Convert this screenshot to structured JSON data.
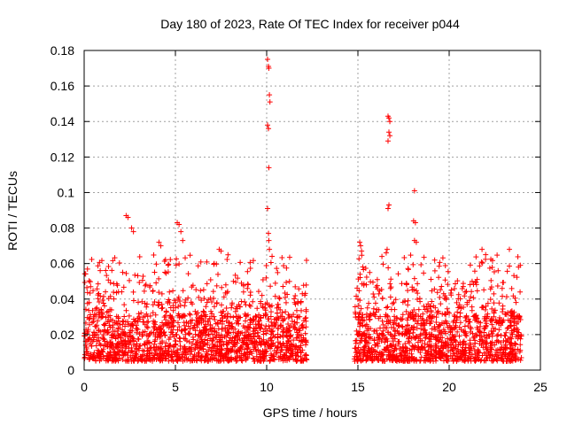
{
  "chart_data": {
    "type": "scatter",
    "title": "Day 180 of 2023, Rate Of TEC Index for receiver p044",
    "xlabel": "GPS time / hours",
    "ylabel": "ROTI / TECUs",
    "xlim": [
      0,
      25
    ],
    "ylim": [
      0,
      0.18
    ],
    "x_ticks": [
      0,
      5,
      10,
      15,
      20,
      25
    ],
    "y_ticks": [
      0,
      0.02,
      0.04,
      0.06,
      0.08,
      0.1,
      0.12,
      0.14,
      0.16,
      0.18
    ],
    "x_tick_labels": [
      "0",
      "5",
      "10",
      "15",
      "20",
      "25"
    ],
    "y_tick_labels": [
      "0",
      "0.02",
      "0.04",
      "0.06",
      "0.08",
      "0.1",
      "0.12",
      "0.14",
      "0.16",
      "0.18"
    ],
    "grid": true,
    "marker": "+",
    "color": "#ff0000",
    "data_segments": [
      {
        "x_start": 0.0,
        "x_end": 12.2,
        "typical_y_range": [
          0.005,
          0.03
        ],
        "max_bursts": [
          0.086,
          0.08
        ]
      },
      {
        "x_start": 14.8,
        "x_end": 24.0,
        "typical_y_range": [
          0.005,
          0.03
        ],
        "max_bursts": [
          0.07,
          0.068
        ]
      }
    ],
    "notable_points": [
      {
        "x": 2.3,
        "y": 0.087
      },
      {
        "x": 2.4,
        "y": 0.086
      },
      {
        "x": 2.6,
        "y": 0.08
      },
      {
        "x": 2.7,
        "y": 0.078
      },
      {
        "x": 4.1,
        "y": 0.072
      },
      {
        "x": 4.2,
        "y": 0.07
      },
      {
        "x": 5.1,
        "y": 0.083
      },
      {
        "x": 5.2,
        "y": 0.082
      },
      {
        "x": 5.3,
        "y": 0.078
      },
      {
        "x": 5.4,
        "y": 0.073
      },
      {
        "x": 7.4,
        "y": 0.068
      },
      {
        "x": 7.5,
        "y": 0.067
      },
      {
        "x": 10.05,
        "y": 0.175
      },
      {
        "x": 10.1,
        "y": 0.171
      },
      {
        "x": 10.12,
        "y": 0.17
      },
      {
        "x": 10.15,
        "y": 0.155
      },
      {
        "x": 10.18,
        "y": 0.151
      },
      {
        "x": 10.05,
        "y": 0.138
      },
      {
        "x": 10.1,
        "y": 0.136
      },
      {
        "x": 10.12,
        "y": 0.114
      },
      {
        "x": 10.05,
        "y": 0.091
      },
      {
        "x": 10.1,
        "y": 0.077
      },
      {
        "x": 10.12,
        "y": 0.073
      },
      {
        "x": 10.15,
        "y": 0.068
      },
      {
        "x": 15.1,
        "y": 0.072
      },
      {
        "x": 15.15,
        "y": 0.07
      },
      {
        "x": 15.2,
        "y": 0.067
      },
      {
        "x": 16.65,
        "y": 0.143
      },
      {
        "x": 16.7,
        "y": 0.142
      },
      {
        "x": 16.75,
        "y": 0.14
      },
      {
        "x": 16.7,
        "y": 0.134
      },
      {
        "x": 16.75,
        "y": 0.132
      },
      {
        "x": 16.65,
        "y": 0.129
      },
      {
        "x": 16.7,
        "y": 0.093
      },
      {
        "x": 16.65,
        "y": 0.091
      },
      {
        "x": 16.6,
        "y": 0.068
      },
      {
        "x": 16.55,
        "y": 0.066
      },
      {
        "x": 18.1,
        "y": 0.101
      },
      {
        "x": 18.05,
        "y": 0.084
      },
      {
        "x": 18.15,
        "y": 0.083
      },
      {
        "x": 18.1,
        "y": 0.073
      },
      {
        "x": 18.2,
        "y": 0.072
      },
      {
        "x": 21.8,
        "y": 0.068
      },
      {
        "x": 22.0,
        "y": 0.065
      },
      {
        "x": 23.3,
        "y": 0.068
      },
      {
        "x": 23.9,
        "y": 0.059
      },
      {
        "x": 23.8,
        "y": 0.058
      }
    ]
  }
}
